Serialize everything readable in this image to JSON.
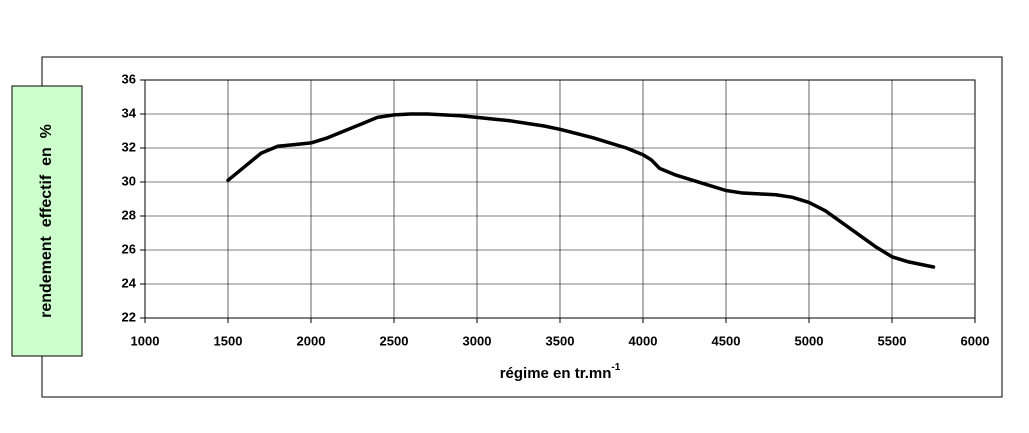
{
  "chart_data": {
    "type": "line",
    "ylabel": "rendement  effectif  en  %",
    "xlabel": "régime en tr.mn",
    "xlabel_superscript": "-1",
    "x": [
      1500,
      1600,
      1700,
      1800,
      1900,
      2000,
      2100,
      2200,
      2300,
      2400,
      2500,
      2600,
      2700,
      2800,
      2900,
      3000,
      3100,
      3200,
      3300,
      3400,
      3500,
      3600,
      3700,
      3800,
      3900,
      4000,
      4050,
      4100,
      4200,
      4300,
      4400,
      4500,
      4600,
      4700,
      4800,
      4900,
      5000,
      5100,
      5200,
      5300,
      5400,
      5500,
      5600,
      5750
    ],
    "series": [
      {
        "color": "#000000",
        "values": [
          30.1,
          30.9,
          31.7,
          32.1,
          32.2,
          32.3,
          32.6,
          33.0,
          33.4,
          33.8,
          33.95,
          34.0,
          34.0,
          33.95,
          33.9,
          33.8,
          33.7,
          33.6,
          33.45,
          33.3,
          33.1,
          32.85,
          32.6,
          32.3,
          32.0,
          31.6,
          31.3,
          30.8,
          30.4,
          30.1,
          29.8,
          29.5,
          29.35,
          29.3,
          29.25,
          29.1,
          28.8,
          28.3,
          27.6,
          26.9,
          26.2,
          25.6,
          25.3,
          25.0
        ]
      }
    ],
    "xlim": [
      1000,
      6000
    ],
    "xticks": [
      1000,
      1500,
      2000,
      2500,
      3000,
      3500,
      4000,
      4500,
      5000,
      5500,
      6000
    ],
    "ylim": [
      22,
      36
    ],
    "yticks": [
      22,
      24,
      26,
      28,
      30,
      32,
      34,
      36
    ],
    "grid": true,
    "ylabel_box_color": "#ccffcc"
  }
}
